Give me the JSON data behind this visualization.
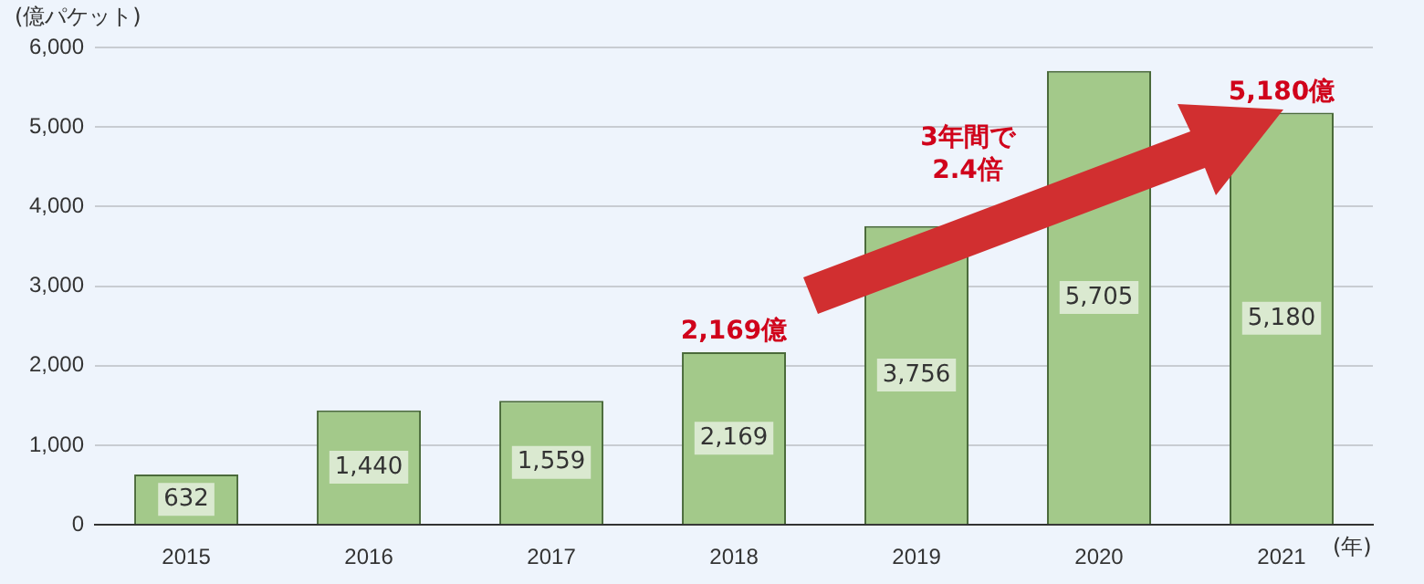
{
  "chart_data": {
    "type": "bar",
    "ylabel": "(億パケット)",
    "xlabel": "(年)",
    "categories": [
      "2015",
      "2016",
      "2017",
      "2018",
      "2019",
      "2020",
      "2021"
    ],
    "values": [
      632,
      1440,
      1559,
      2169,
      3756,
      5705,
      5180
    ],
    "color": "#a3c98a",
    "ylim": [
      0,
      6000
    ],
    "yticks": [
      0,
      {
        "value": 1000,
        "label": "1,000"
      },
      {
        "value": 2000,
        "label": "2,000"
      },
      {
        "value": 3000,
        "label": "3,000"
      },
      {
        "value": 4000,
        "label": "4,000"
      },
      {
        "value": 5000,
        "label": "5,000"
      },
      {
        "value": 6000,
        "label": "6,000"
      }
    ],
    "value_labels": [
      "632",
      "1,440",
      "1,559",
      "2,169",
      "3,756",
      "5,705",
      "5,180"
    ],
    "grid": "y",
    "legend": false,
    "annotations": [
      {
        "text": "2,169億",
        "x": "2018",
        "y": 2169
      },
      {
        "text": "5,180億",
        "x": "2021",
        "y": 5180
      },
      "3年間で\n2.4倍"
    ]
  }
}
